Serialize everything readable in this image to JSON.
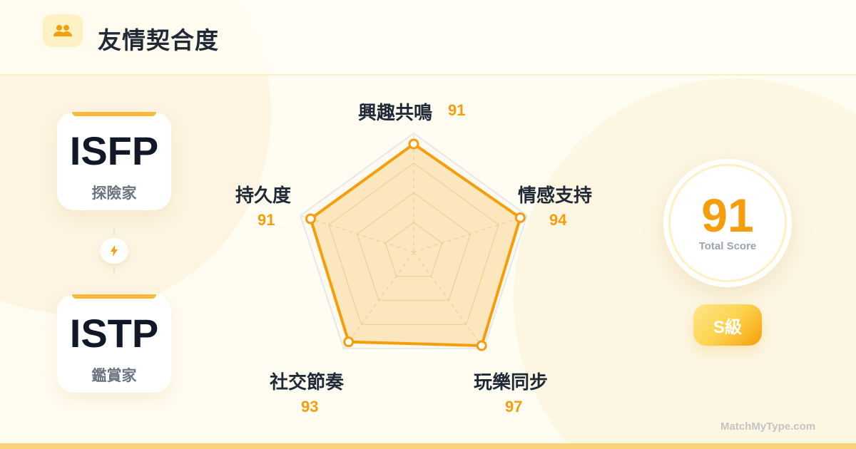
{
  "header": {
    "title": "友情契合度",
    "icon": "users-icon"
  },
  "pair": [
    {
      "code": "ISFP",
      "nickname": "探險家"
    },
    {
      "code": "ISTP",
      "nickname": "鑑賞家"
    }
  ],
  "connector_icon": "lightning-icon",
  "score": {
    "value": "91",
    "label": "Total Score"
  },
  "grade": "S級",
  "brand": "MatchMyType.com",
  "colors": {
    "accent": "#f59e0b",
    "fill": "#f8d28a",
    "grid": "#e5e7eb"
  },
  "chart_data": {
    "type": "radar",
    "range": [
      0,
      100
    ],
    "grid_levels": [
      25,
      50,
      75,
      100
    ],
    "categories": [
      "興趣共鳴",
      "情感支持",
      "玩樂同步",
      "社交節奏",
      "持久度"
    ],
    "values": [
      91,
      94,
      97,
      93,
      91
    ],
    "value_labels": [
      "91",
      "94",
      "97",
      "93",
      "91"
    ]
  }
}
